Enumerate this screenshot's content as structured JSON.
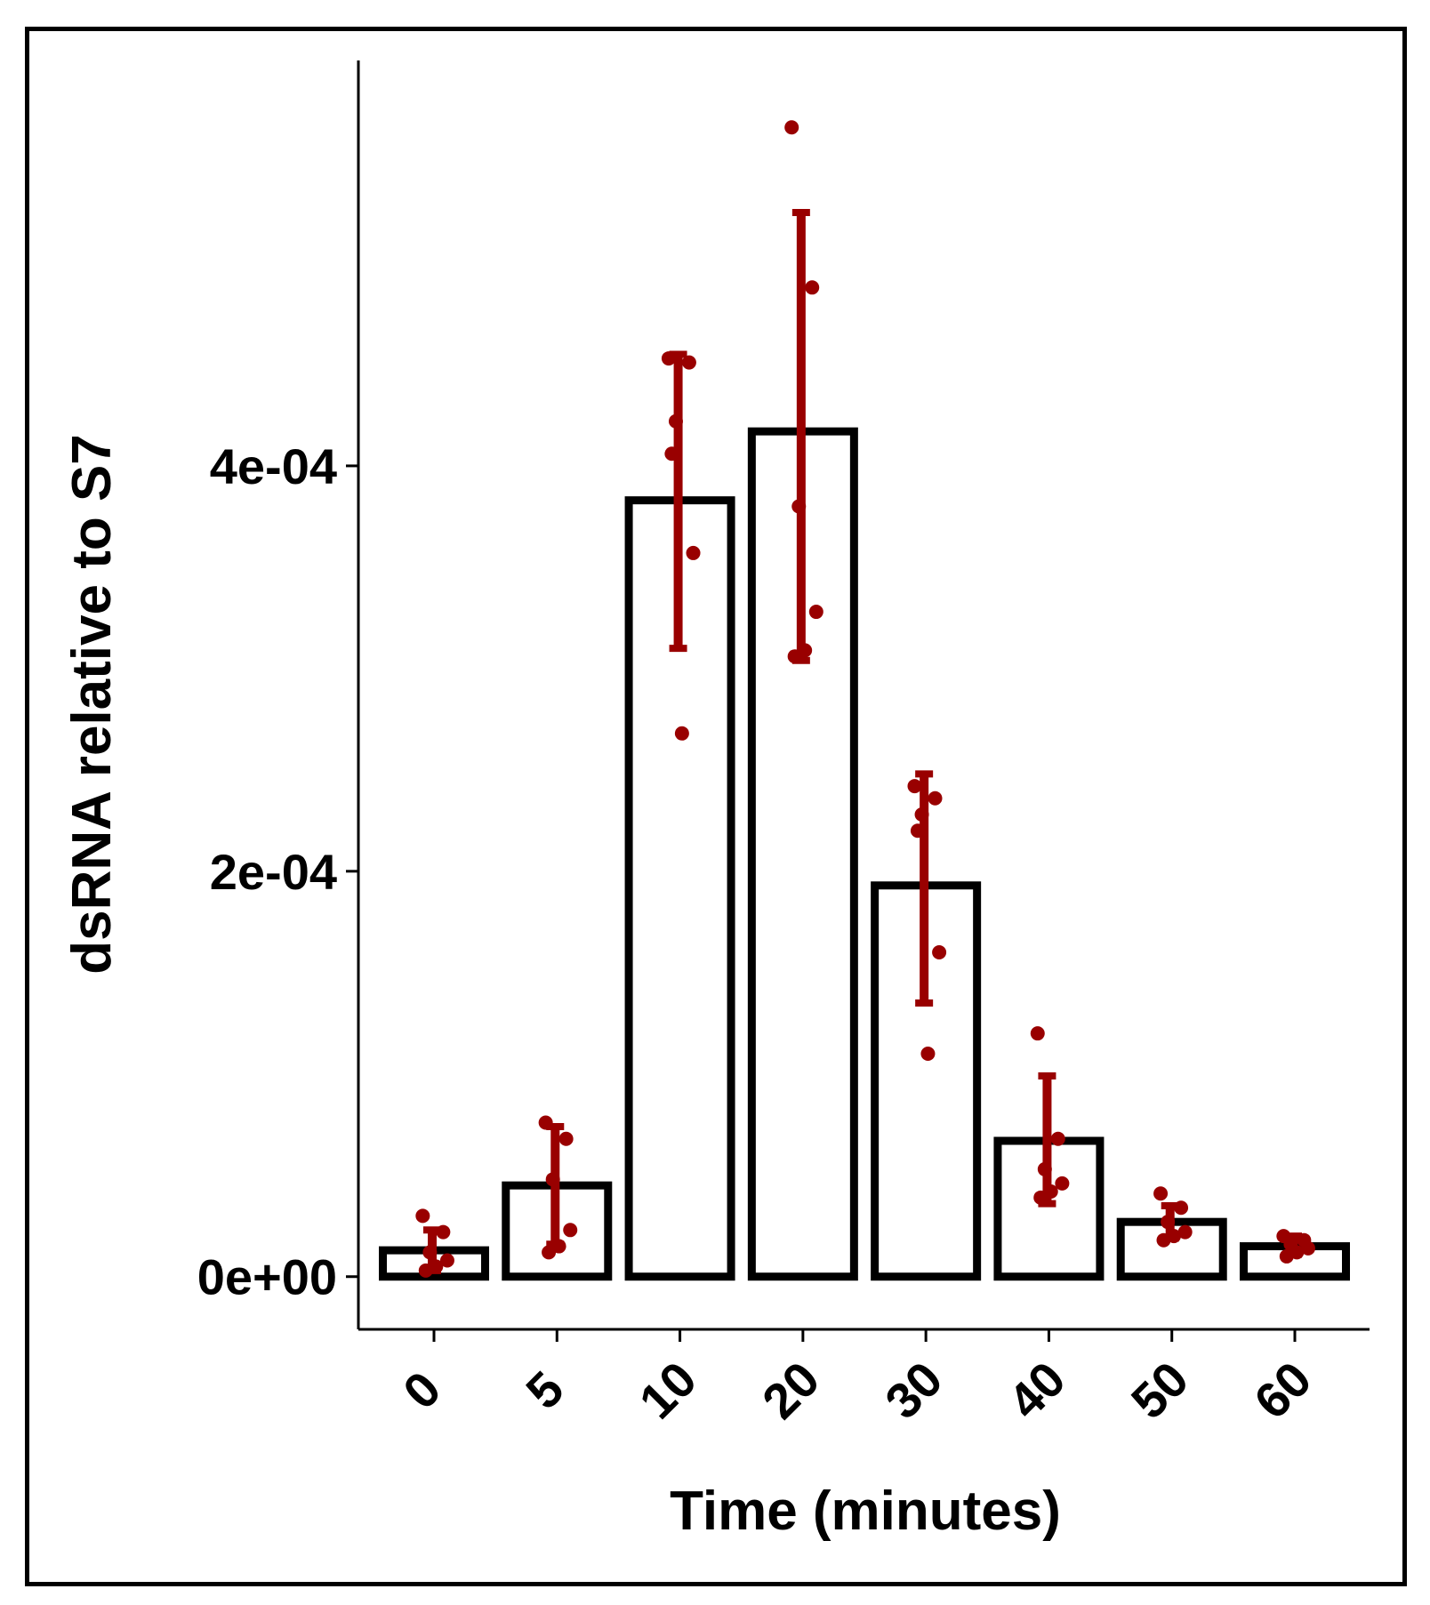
{
  "chart_data": {
    "type": "bar",
    "title": "",
    "xlabel": "Time (minutes)",
    "ylabel": "dsRNA relative to S7",
    "categories": [
      "0",
      "5",
      "10",
      "20",
      "30",
      "40",
      "50",
      "60"
    ],
    "values": [
      1.3e-05,
      4.5e-05,
      0.000383,
      0.000417,
      0.000193,
      6.7e-05,
      2.7e-05,
      1.5e-05
    ],
    "error_low": [
      3e-06,
      1.6e-05,
      0.00031,
      0.000304,
      0.000135,
      3.6e-05,
      1.9e-05,
      1.1e-05
    ],
    "error_high": [
      2.3e-05,
      7.4e-05,
      0.000455,
      0.000525,
      0.000248,
      9.9e-05,
      3.5e-05,
      2e-05
    ],
    "points": [
      [
        3e-05,
        2.2e-05,
        1.2e-05,
        8e-06,
        5e-06,
        3e-06
      ],
      [
        7.6e-05,
        6.8e-05,
        4.8e-05,
        2.3e-05,
        1.5e-05,
        1.2e-05
      ],
      [
        0.000453,
        0.000451,
        0.000422,
        0.000357,
        0.000268,
        0.000406
      ],
      [
        0.000567,
        0.000488,
        0.00038,
        0.000328,
        0.000309,
        0.000306
      ],
      [
        0.000242,
        0.000236,
        0.000228,
        0.00016,
        0.00011,
        0.00022
      ],
      [
        0.00012,
        6.8e-05,
        5.3e-05,
        4.6e-05,
        4.2e-05,
        3.9e-05
      ],
      [
        4.1e-05,
        3.4e-05,
        2.7e-05,
        2.2e-05,
        2e-05,
        1.8e-05
      ],
      [
        2e-05,
        1.8e-05,
        1.6e-05,
        1.4e-05,
        1.2e-05,
        1e-05
      ]
    ],
    "ylim": [
      -2.6e-05,
      0.0006
    ],
    "yticks": [
      {
        "value": 0,
        "label": "0e+00"
      },
      {
        "value": 0.0002,
        "label": "2e-04"
      },
      {
        "value": 0.0004,
        "label": "4e-04"
      }
    ],
    "bar_fill": "#ffffff",
    "bar_stroke": "#000000",
    "point_color": "#990000",
    "errorbar_color": "#990000",
    "grid": false,
    "legend": "none"
  }
}
